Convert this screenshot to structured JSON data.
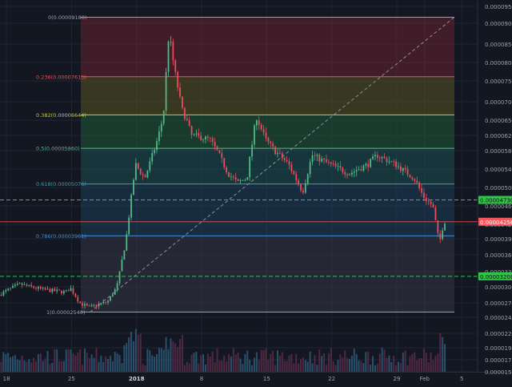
{
  "colors": {
    "background": "#131722",
    "grid": "#1f2433",
    "axis_text": "#9aa0ab",
    "up": "#53b987",
    "down": "#eb4d5c",
    "volume_up": "#2d5a7a",
    "volume_down": "#5a2d4a",
    "fib_line": "#9aa0ab",
    "fib_trend": "#8a8f99",
    "support": "#35c24a",
    "current_price_bg": "#f2585b",
    "support_label_bg": "#35c24a"
  },
  "chart_data": {
    "type": "candlestick",
    "title": "",
    "x_tick_labels": [
      "18",
      "25",
      "2018",
      "8",
      "15",
      "22",
      "29",
      "Feb",
      "5"
    ],
    "x_ticks": [
      {
        "label": "18",
        "day": -14
      },
      {
        "label": "25",
        "day": -7
      },
      {
        "label": "2018",
        "day": 0
      },
      {
        "label": "8",
        "day": 7
      },
      {
        "label": "15",
        "day": 14
      },
      {
        "label": "22",
        "day": 21
      },
      {
        "label": "29",
        "day": 28
      },
      {
        "label": "Feb",
        "day": 31
      },
      {
        "label": "5",
        "day": 35
      }
    ],
    "x_range_days": [
      -14.7,
      36.7
    ],
    "y_tick_labels": [
      "0.00009500",
      "0.00009000",
      "0.00008500",
      "0.00008000",
      "0.00007500",
      "0.00007000",
      "0.00006500",
      "0.00006200",
      "0.00005800",
      "0.00005400",
      "0.00005000",
      "0.00004600",
      "0.00004200",
      "0.00003900",
      "0.00003600",
      "0.00003300",
      "0.00003000",
      "0.00002700",
      "0.00002450",
      "0.00002200",
      "0.00001950",
      "0.00001730",
      "0.00001520"
    ],
    "price_ticks": [
      9.5e-05,
      9e-05,
      8.5e-05,
      8e-05,
      7.5e-05,
      7e-05,
      6.5e-05,
      6.2e-05,
      5.8e-05,
      5.4e-05,
      5e-05,
      4.6e-05,
      4.2e-05,
      3.9e-05,
      3.6e-05,
      3.3e-05,
      3e-05,
      2.7e-05,
      2.45e-05,
      2.2e-05,
      1.95e-05,
      1.73e-05,
      1.52e-05
    ],
    "fibonacci": {
      "levels": [
        {
          "label": "0(0.00009180)",
          "price": 9.18e-05,
          "color": "#9aa0ab",
          "fill": "rgba(150,40,55,0.35)"
        },
        {
          "label": "0.236(0.00007613)",
          "price": 7.613e-05,
          "color": "#e05a5a",
          "fill": "rgba(100,95,35,0.45)"
        },
        {
          "label": "0.382(0.00006644)",
          "price": 6.644e-05,
          "color": "#c6c843",
          "fill": "rgba(30,95,55,0.5)"
        },
        {
          "label": "0.5(0.00005860)",
          "price": 5.86e-05,
          "color": "#53b987",
          "fill": "rgba(25,85,85,0.5)"
        },
        {
          "label": "0.618(0.00005076)",
          "price": 5.076e-05,
          "color": "#3aa0a8",
          "fill": "rgba(30,70,100,0.45)"
        },
        {
          "label": "0.786(0.00003961)",
          "price": 3.961e-05,
          "color": "#4a8fd0",
          "fill": "rgba(60,60,75,0.45)"
        },
        {
          "label": "1(0.00002540)",
          "price": 2.54e-05,
          "color": "#9aa0ab",
          "fill": ""
        }
      ],
      "trend_line": {
        "start_day": -5.0,
        "start_price": 2.54e-05,
        "end_day": 34.0,
        "end_price": 9.18e-05
      }
    },
    "support_lines": [
      {
        "label": "0.00004730",
        "price": 4.73e-05
      },
      {
        "label": "0.00003208",
        "price": 3.208e-05
      }
    ],
    "current_price": {
      "label": "0.00004256",
      "price": 4.256e-05
    },
    "price_path": [
      {
        "day": -14.7,
        "price": 2.85e-05
      },
      {
        "day": -12.5,
        "price": 3.05e-05
      },
      {
        "day": -10.0,
        "price": 2.95e-05
      },
      {
        "day": -7.5,
        "price": 2.9e-05
      },
      {
        "day": -7.0,
        "price": 2.98e-05
      },
      {
        "day": -6.0,
        "price": 2.7e-05
      },
      {
        "day": -5.0,
        "price": 2.62e-05
      },
      {
        "day": -3.0,
        "price": 2.72e-05
      },
      {
        "day": -2.0,
        "price": 3e-05
      },
      {
        "day": -1.0,
        "price": 3.9e-05
      },
      {
        "day": 0.0,
        "price": 5.5e-05
      },
      {
        "day": 1.0,
        "price": 5.2e-05
      },
      {
        "day": 2.0,
        "price": 5.8e-05
      },
      {
        "day": 3.0,
        "price": 6.6e-05
      },
      {
        "day": 3.6,
        "price": 8.8e-05
      },
      {
        "day": 4.2,
        "price": 7.8e-05
      },
      {
        "day": 5.0,
        "price": 6.8e-05
      },
      {
        "day": 6.0,
        "price": 6.2e-05
      },
      {
        "day": 8.0,
        "price": 6.1e-05
      },
      {
        "day": 10.0,
        "price": 5.3e-05
      },
      {
        "day": 11.0,
        "price": 5.1e-05
      },
      {
        "day": 12.0,
        "price": 5.2e-05
      },
      {
        "day": 13.0,
        "price": 6.6e-05
      },
      {
        "day": 14.0,
        "price": 6.1e-05
      },
      {
        "day": 15.0,
        "price": 5.8e-05
      },
      {
        "day": 16.5,
        "price": 5.5e-05
      },
      {
        "day": 18.0,
        "price": 4.9e-05
      },
      {
        "day": 19.0,
        "price": 5.7e-05
      },
      {
        "day": 21.0,
        "price": 5.5e-05
      },
      {
        "day": 23.0,
        "price": 5.3e-05
      },
      {
        "day": 25.0,
        "price": 5.5e-05
      },
      {
        "day": 26.0,
        "price": 5.7e-05
      },
      {
        "day": 28.0,
        "price": 5.5e-05
      },
      {
        "day": 30.0,
        "price": 5.2e-05
      },
      {
        "day": 31.0,
        "price": 4.8e-05
      },
      {
        "day": 32.0,
        "price": 4.6e-05
      },
      {
        "day": 32.7,
        "price": 3.8e-05
      },
      {
        "day": 33.2,
        "price": 4.256e-05
      }
    ]
  }
}
